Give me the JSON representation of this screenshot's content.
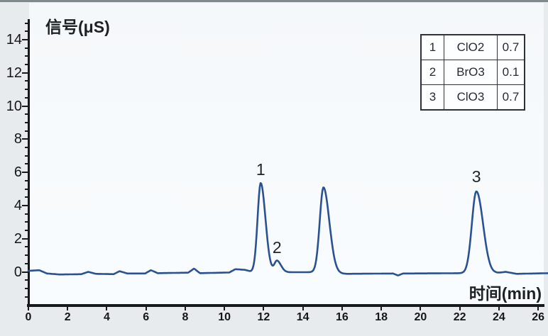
{
  "page": {
    "background": "#e7ebed",
    "plot_background": "#f8fbfd",
    "axis_color": "#17191d"
  },
  "chart_data": {
    "type": "line",
    "title": "",
    "ylabel": "信号(μS)",
    "xlabel": "时间(min)",
    "xlim": [
      0,
      26
    ],
    "ylim": [
      -2,
      15.1
    ],
    "x_ticks": [
      0,
      2,
      4,
      6,
      8,
      10,
      12,
      14,
      16,
      18,
      20,
      22,
      24,
      26
    ],
    "y_ticks": [
      0,
      2,
      4,
      6,
      8,
      10,
      12,
      14
    ],
    "y_minor_step": 0.5,
    "y_minor_range": [
      -1.5,
      15
    ],
    "grid": "off",
    "legend_position": "top-right",
    "line_color": "#2a5191",
    "peaks": [
      {
        "label": "1",
        "t": 11.85,
        "height": 5.35,
        "sigma_left": 0.16,
        "sigma_right": 0.24
      },
      {
        "label": "2",
        "t": 12.68,
        "height": 0.68,
        "sigma_left": 0.13,
        "sigma_right": 0.2
      },
      {
        "label": "",
        "t": 15.05,
        "height": 5.15,
        "sigma_left": 0.19,
        "sigma_right": 0.3
      },
      {
        "label": "3",
        "t": 22.85,
        "height": 4.95,
        "sigma_left": 0.23,
        "sigma_right": 0.34
      }
    ],
    "baseline_points": [
      [
        0,
        0.06
      ],
      [
        0.55,
        0.1
      ],
      [
        0.95,
        -0.1
      ],
      [
        1.6,
        -0.16
      ],
      [
        2.7,
        -0.14
      ],
      [
        3.05,
        0.0
      ],
      [
        3.45,
        -0.12
      ],
      [
        4.35,
        -0.14
      ],
      [
        4.65,
        0.04
      ],
      [
        5.05,
        -0.1
      ],
      [
        5.95,
        -0.1
      ],
      [
        6.25,
        0.1
      ],
      [
        6.6,
        -0.08
      ],
      [
        8.15,
        -0.05
      ],
      [
        8.45,
        0.2
      ],
      [
        8.75,
        -0.08
      ],
      [
        10.25,
        -0.04
      ],
      [
        10.55,
        0.16
      ],
      [
        11.05,
        0.12
      ],
      [
        11.35,
        0.02
      ],
      [
        13.3,
        -0.02
      ],
      [
        14.4,
        -0.02
      ],
      [
        16.2,
        -0.12
      ],
      [
        18.6,
        -0.1
      ],
      [
        18.85,
        -0.22
      ],
      [
        19.1,
        -0.1
      ],
      [
        22.2,
        -0.08
      ],
      [
        23.6,
        -0.12
      ],
      [
        24.35,
        0.0
      ],
      [
        24.9,
        -0.12
      ],
      [
        26.55,
        -0.08
      ]
    ]
  },
  "legend_table": {
    "rows": [
      {
        "num": "1",
        "species": "ClO2",
        "value": "0.7"
      },
      {
        "num": "2",
        "species": "BrO3",
        "value": "0.1"
      },
      {
        "num": "3",
        "species": "ClO3",
        "value": "0.7"
      }
    ]
  }
}
